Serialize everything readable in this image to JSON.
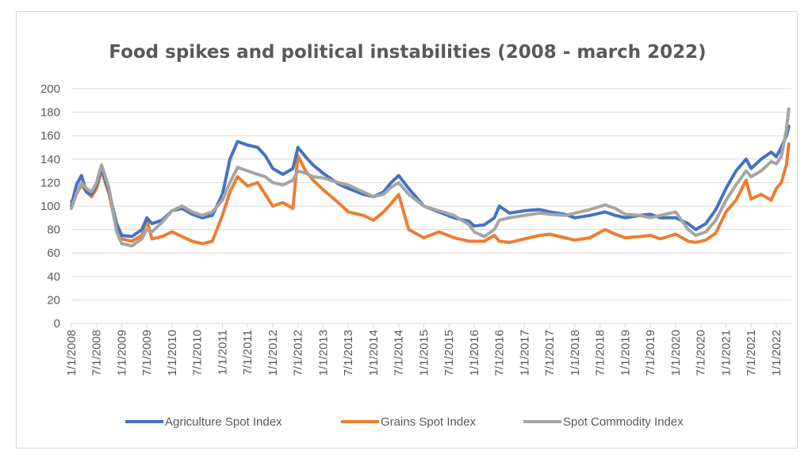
{
  "chart_data": {
    "type": "line",
    "title": "Food spikes and political instabilities (2008 - march 2022)",
    "xlabel": "",
    "ylabel": "",
    "ylim": [
      0,
      200
    ],
    "yticks": [
      0,
      20,
      40,
      60,
      80,
      100,
      120,
      140,
      160,
      180,
      200
    ],
    "xlim": [
      2008.0,
      2022.3
    ],
    "x_tick_labels": [
      "1/1/2008",
      "7/1/2008",
      "1/1/2009",
      "7/1/2009",
      "1/1/2010",
      "7/1/2010",
      "1/1/2011",
      "7/1/2011",
      "1/1/2012",
      "7/1/2012",
      "1/1/2013",
      "7/1/2013",
      "1/1/2014",
      "7/1/2014",
      "1/1/2015",
      "7/1/2015",
      "1/1/2016",
      "7/1/2016",
      "1/1/2017",
      "7/1/2017",
      "1/1/2018",
      "7/1/2018",
      "1/1/2019",
      "7/1/2019",
      "1/1/2020",
      "7/1/2020",
      "1/1/2021",
      "7/1/2021",
      "1/1/2022"
    ],
    "x_tick_values": [
      2008.0,
      2008.5,
      2009.0,
      2009.5,
      2010.0,
      2010.5,
      2011.0,
      2011.5,
      2012.0,
      2012.5,
      2013.0,
      2013.5,
      2014.0,
      2014.5,
      2015.0,
      2015.5,
      2016.0,
      2016.5,
      2017.0,
      2017.5,
      2018.0,
      2018.5,
      2019.0,
      2019.5,
      2020.0,
      2020.5,
      2021.0,
      2021.5,
      2022.0
    ],
    "grid": true,
    "legend_position": "bottom",
    "series": [
      {
        "name": "Agriculture Spot Index",
        "color": "#4472c4",
        "x": [
          2008.0,
          2008.1,
          2008.2,
          2008.3,
          2008.4,
          2008.5,
          2008.6,
          2008.75,
          2008.9,
          2009.0,
          2009.2,
          2009.4,
          2009.5,
          2009.6,
          2009.8,
          2010.0,
          2010.2,
          2010.4,
          2010.6,
          2010.8,
          2011.0,
          2011.15,
          2011.3,
          2011.5,
          2011.7,
          2011.85,
          2012.0,
          2012.2,
          2012.4,
          2012.5,
          2012.65,
          2012.8,
          2013.0,
          2013.3,
          2013.5,
          2013.8,
          2014.0,
          2014.2,
          2014.35,
          2014.5,
          2014.7,
          2015.0,
          2015.3,
          2015.6,
          2015.9,
          2016.0,
          2016.2,
          2016.4,
          2016.5,
          2016.7,
          2017.0,
          2017.3,
          2017.5,
          2017.8,
          2018.0,
          2018.3,
          2018.6,
          2018.8,
          2019.0,
          2019.3,
          2019.5,
          2019.7,
          2020.0,
          2020.25,
          2020.4,
          2020.6,
          2020.8,
          2021.0,
          2021.2,
          2021.4,
          2021.5,
          2021.7,
          2021.9,
          2022.0,
          2022.1,
          2022.2,
          2022.25
        ],
        "values": [
          100,
          118,
          126,
          112,
          110,
          118,
          132,
          112,
          85,
          75,
          74,
          80,
          90,
          85,
          88,
          96,
          98,
          93,
          90,
          92,
          110,
          140,
          155,
          152,
          150,
          143,
          132,
          127,
          132,
          150,
          142,
          135,
          128,
          119,
          115,
          110,
          108,
          112,
          120,
          126,
          115,
          100,
          95,
          90,
          87,
          83,
          84,
          90,
          100,
          94,
          96,
          97,
          95,
          93,
          90,
          92,
          95,
          92,
          90,
          92,
          93,
          90,
          90,
          85,
          80,
          85,
          97,
          115,
          130,
          140,
          132,
          140,
          146,
          142,
          150,
          160,
          168
        ]
      },
      {
        "name": "Grains Spot Index",
        "color": "#ed7d31",
        "x": [
          2008.0,
          2008.1,
          2008.2,
          2008.3,
          2008.4,
          2008.5,
          2008.6,
          2008.75,
          2008.9,
          2009.0,
          2009.2,
          2009.4,
          2009.5,
          2009.6,
          2009.8,
          2010.0,
          2010.2,
          2010.4,
          2010.6,
          2010.8,
          2011.0,
          2011.15,
          2011.3,
          2011.5,
          2011.7,
          2011.85,
          2012.0,
          2012.2,
          2012.4,
          2012.5,
          2012.65,
          2012.8,
          2013.0,
          2013.3,
          2013.5,
          2013.8,
          2014.0,
          2014.2,
          2014.35,
          2014.5,
          2014.7,
          2015.0,
          2015.3,
          2015.6,
          2015.9,
          2016.0,
          2016.2,
          2016.4,
          2016.5,
          2016.7,
          2017.0,
          2017.3,
          2017.5,
          2017.8,
          2018.0,
          2018.3,
          2018.6,
          2018.8,
          2019.0,
          2019.3,
          2019.5,
          2019.7,
          2020.0,
          2020.25,
          2020.4,
          2020.6,
          2020.8,
          2021.0,
          2021.2,
          2021.4,
          2021.5,
          2021.7,
          2021.9,
          2022.0,
          2022.1,
          2022.2,
          2022.25
        ],
        "values": [
          104,
          110,
          118,
          112,
          108,
          115,
          130,
          110,
          80,
          72,
          70,
          75,
          88,
          72,
          74,
          78,
          74,
          70,
          68,
          70,
          92,
          112,
          125,
          117,
          120,
          110,
          100,
          103,
          98,
          143,
          130,
          122,
          114,
          103,
          95,
          92,
          88,
          95,
          102,
          110,
          80,
          73,
          78,
          73,
          70,
          70,
          70,
          75,
          70,
          69,
          72,
          75,
          76,
          73,
          71,
          73,
          80,
          76,
          73,
          74,
          75,
          72,
          76,
          70,
          69,
          71,
          77,
          95,
          105,
          122,
          106,
          110,
          105,
          115,
          120,
          135,
          153
        ]
      },
      {
        "name": "Spot Commodity Index",
        "color": "#a5a5a5",
        "x": [
          2008.0,
          2008.1,
          2008.2,
          2008.3,
          2008.4,
          2008.5,
          2008.6,
          2008.75,
          2008.9,
          2009.0,
          2009.2,
          2009.4,
          2009.5,
          2009.6,
          2009.8,
          2010.0,
          2010.2,
          2010.4,
          2010.6,
          2010.8,
          2011.0,
          2011.15,
          2011.3,
          2011.5,
          2011.7,
          2011.85,
          2012.0,
          2012.2,
          2012.4,
          2012.5,
          2012.65,
          2012.8,
          2013.0,
          2013.3,
          2013.5,
          2013.8,
          2014.0,
          2014.2,
          2014.35,
          2014.5,
          2014.7,
          2015.0,
          2015.3,
          2015.6,
          2015.9,
          2016.0,
          2016.2,
          2016.4,
          2016.5,
          2016.7,
          2017.0,
          2017.3,
          2017.5,
          2017.8,
          2018.0,
          2018.3,
          2018.6,
          2018.8,
          2019.0,
          2019.3,
          2019.5,
          2019.7,
          2020.0,
          2020.25,
          2020.4,
          2020.6,
          2020.8,
          2021.0,
          2021.2,
          2021.4,
          2021.5,
          2021.7,
          2021.9,
          2022.0,
          2022.1,
          2022.2,
          2022.25
        ],
        "values": [
          98,
          110,
          120,
          115,
          112,
          120,
          135,
          115,
          78,
          68,
          66,
          72,
          80,
          78,
          86,
          96,
          100,
          95,
          92,
          95,
          105,
          120,
          133,
          130,
          127,
          125,
          120,
          118,
          122,
          130,
          128,
          125,
          124,
          120,
          118,
          112,
          108,
          110,
          116,
          120,
          110,
          100,
          96,
          92,
          84,
          78,
          74,
          80,
          88,
          90,
          92,
          94,
          93,
          92,
          94,
          97,
          101,
          98,
          93,
          92,
          90,
          92,
          95,
          80,
          75,
          78,
          88,
          105,
          118,
          130,
          125,
          130,
          138,
          136,
          142,
          165,
          183
        ]
      }
    ]
  }
}
